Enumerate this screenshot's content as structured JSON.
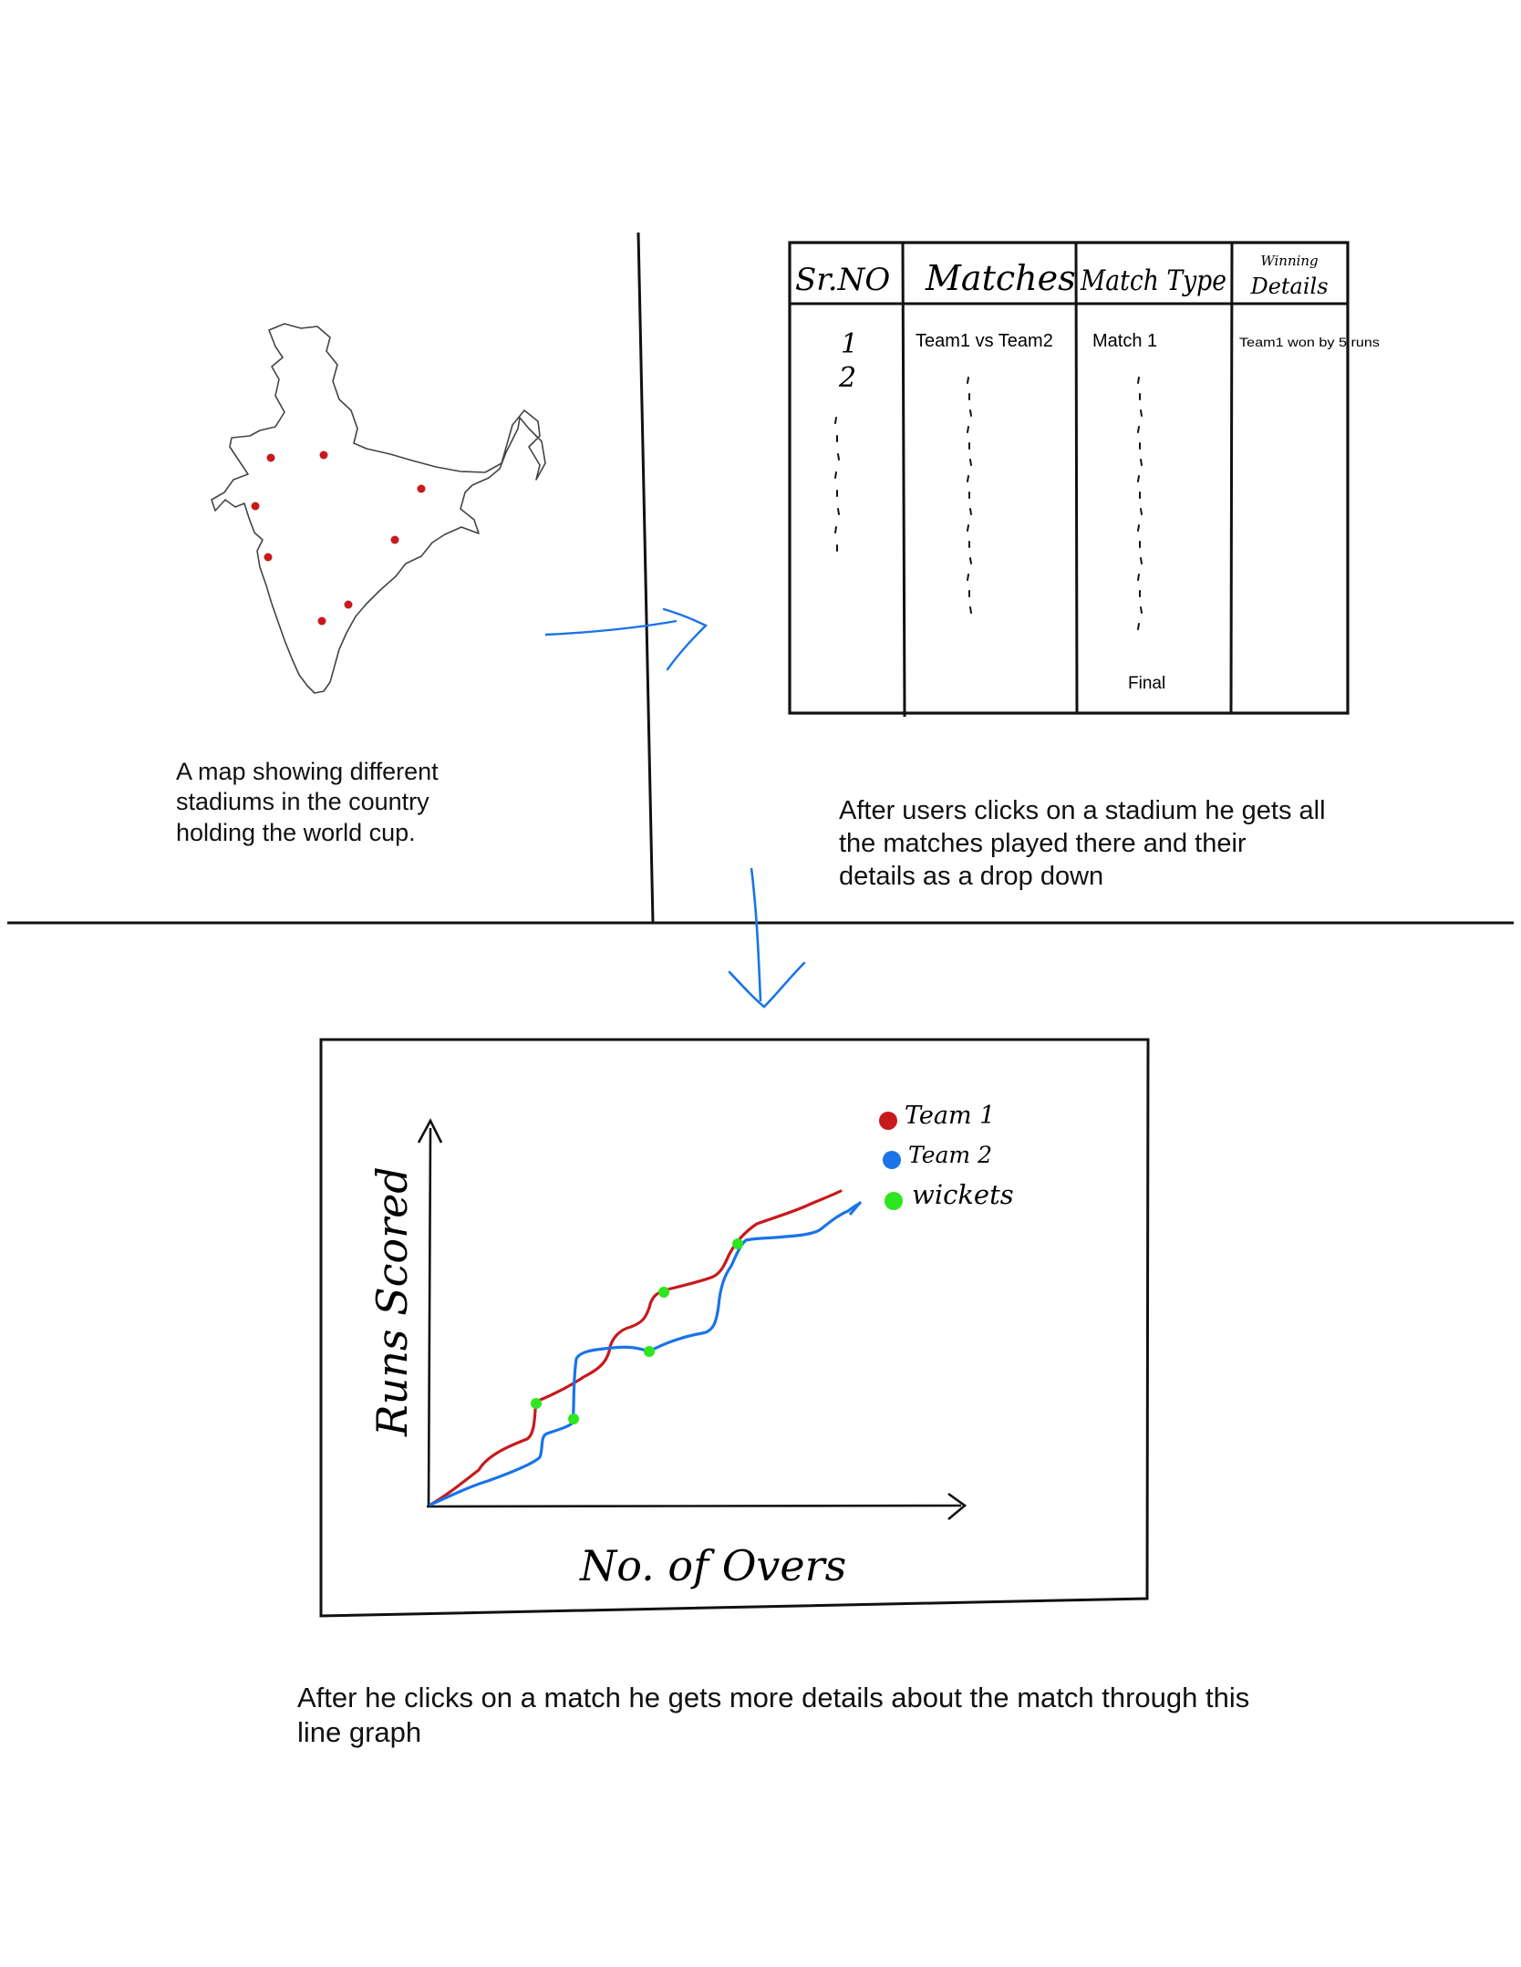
{
  "map_panel": {
    "caption": "A map showing different\nstadiums in the country\nholding the world cup.",
    "marker_color": "#c8191d"
  },
  "table_panel": {
    "headers": [
      "Sr.NO",
      "Matches",
      "Match Type",
      "Winning Details"
    ],
    "rows": [
      {
        "sr": "1",
        "match": "Team1 vs Team2",
        "type": "Match 1",
        "winning": "Team1 won by 5 runs"
      },
      {
        "sr": "2",
        "match": "",
        "type": "",
        "winning": ""
      }
    ],
    "final_label": "Final",
    "caption": "After users clicks on a stadium he gets all\nthe matches played there and their\ndetails as a drop down"
  },
  "graph_panel": {
    "caption": "After he clicks on a match he gets more details about the match through this\nline graph"
  },
  "chart_data": {
    "type": "line",
    "title": "",
    "xlabel": "No. of Overs",
    "ylabel": "Runs Scored",
    "legend_position": "top-right",
    "series": [
      {
        "name": "Team 1",
        "color": "#c8191d"
      },
      {
        "name": "Team 2",
        "color": "#1a73e8"
      },
      {
        "name": "wickets",
        "color": "#2ee61f"
      }
    ]
  },
  "arrow_color": "#1a73e8"
}
